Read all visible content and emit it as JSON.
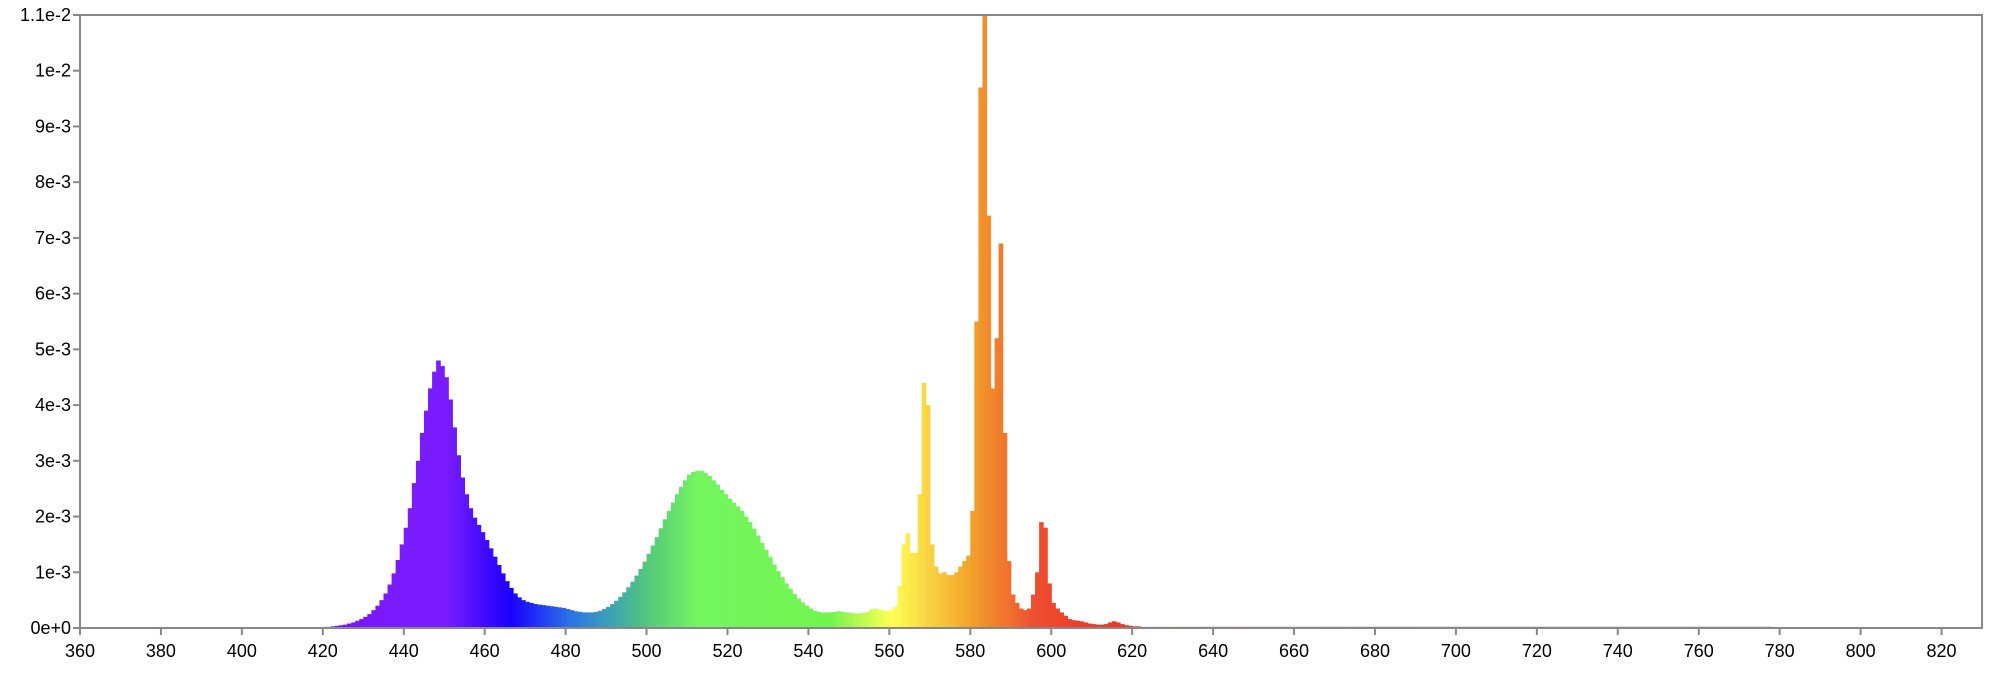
{
  "chart_data": {
    "type": "bar",
    "title": "",
    "xlabel": "",
    "ylabel": "",
    "xlim": [
      360,
      830
    ],
    "ylim": [
      0,
      0.011
    ],
    "grid": false,
    "legend": "none",
    "x_ticks": [
      360,
      380,
      400,
      420,
      440,
      460,
      480,
      500,
      520,
      540,
      560,
      580,
      600,
      620,
      640,
      660,
      680,
      700,
      720,
      740,
      760,
      780,
      800,
      820
    ],
    "x_tick_labels": [
      "360",
      "380",
      "400",
      "420",
      "440",
      "460",
      "480",
      "500",
      "520",
      "540",
      "560",
      "580",
      "600",
      "620",
      "640",
      "660",
      "680",
      "700",
      "720",
      "740",
      "760",
      "780",
      "800",
      "820"
    ],
    "y_ticks": [
      0,
      0.001,
      0.002,
      0.003,
      0.004,
      0.005,
      0.006,
      0.007,
      0.008,
      0.009,
      0.01,
      0.011
    ],
    "y_tick_labels": [
      "0e+0",
      "1e-3",
      "2e-3",
      "3e-3",
      "4e-3",
      "5e-3",
      "6e-3",
      "7e-3",
      "8e-3",
      "9e-3",
      "1e-2",
      "1.1e-2"
    ],
    "series": [
      {
        "x_start": 360,
        "x_step": 1,
        "values": [
          0,
          0,
          0,
          0,
          0,
          0,
          0,
          0,
          0,
          0,
          0,
          0,
          0,
          0,
          0,
          0,
          0,
          0,
          0,
          0,
          0,
          0,
          0,
          0,
          0,
          0,
          0,
          0,
          0,
          0,
          0,
          0,
          0,
          0,
          0,
          0,
          0,
          0,
          0,
          0,
          0,
          0,
          0,
          0,
          0,
          0,
          0,
          0,
          0,
          0,
          1e-05,
          1e-05,
          1e-05,
          1e-05,
          1e-05,
          1e-05,
          1e-05,
          1e-05,
          1e-05,
          1e-05,
          2e-05,
          2e-05,
          3e-05,
          4e-05,
          5e-05,
          6e-05,
          8e-05,
          0.0001,
          0.00013,
          0.00016,
          0.0002,
          0.00025,
          0.00032,
          0.0004,
          0.0005,
          0.00062,
          0.00078,
          0.00098,
          0.00122,
          0.0015,
          0.0018,
          0.00215,
          0.0026,
          0.003,
          0.0035,
          0.0039,
          0.0043,
          0.0046,
          0.0048,
          0.0047,
          0.0045,
          0.0041,
          0.0036,
          0.0031,
          0.0027,
          0.0024,
          0.00215,
          0.00198,
          0.00185,
          0.00172,
          0.00158,
          0.00143,
          0.00128,
          0.00113,
          0.00098,
          0.00084,
          0.00072,
          0.00062,
          0.00055,
          0.0005,
          0.00047,
          0.00045,
          0.00043,
          0.00042,
          0.00041,
          0.0004,
          0.00039,
          0.00038,
          0.00037,
          0.00036,
          0.00034,
          0.00032,
          0.0003,
          0.00029,
          0.00028,
          0.00028,
          0.00028,
          0.00029,
          0.00031,
          0.00034,
          0.00038,
          0.00043,
          0.00049,
          0.00056,
          0.00064,
          0.00073,
          0.00083,
          0.00094,
          0.00106,
          0.00119,
          0.00133,
          0.00148,
          0.00163,
          0.00179,
          0.00195,
          0.0021,
          0.00225,
          0.0024,
          0.00253,
          0.00265,
          0.00275,
          0.0028,
          0.00282,
          0.00282,
          0.00278,
          0.00273,
          0.00265,
          0.00257,
          0.00248,
          0.0024,
          0.00232,
          0.00225,
          0.00218,
          0.0021,
          0.002,
          0.0019,
          0.00178,
          0.00166,
          0.00153,
          0.0014,
          0.00127,
          0.00114,
          0.00102,
          0.00091,
          0.0008,
          0.0007,
          0.00061,
          0.00053,
          0.00046,
          0.0004,
          0.00035,
          0.00031,
          0.00029,
          0.00028,
          0.00028,
          0.00028,
          0.00029,
          0.0003,
          0.00029,
          0.00028,
          0.00027,
          0.00026,
          0.00026,
          0.00027,
          0.00029,
          0.00033,
          0.00035,
          0.00033,
          0.00031,
          0.00031,
          0.00033,
          0.00038,
          0.00075,
          0.0015,
          0.0017,
          0.00135,
          0.00135,
          0.0024,
          0.0044,
          0.004,
          0.0015,
          0.0011,
          0.00098,
          0.001,
          0.00095,
          0.00095,
          0.001,
          0.0011,
          0.0012,
          0.0013,
          0.0021,
          0.0055,
          0.0097,
          0.011,
          0.0074,
          0.0043,
          0.0052,
          0.0069,
          0.0035,
          0.0012,
          0.0006,
          0.00045,
          0.00035,
          0.00032,
          0.00035,
          0.0006,
          0.001,
          0.0019,
          0.0018,
          0.0008,
          0.00045,
          0.00035,
          0.00028,
          0.00022,
          0.00016,
          0.00014,
          0.00013,
          0.00012,
          0.0001,
          8e-05,
          7e-05,
          6e-05,
          6e-05,
          7e-05,
          0.0001,
          0.00012,
          0.0001,
          7e-05,
          5e-05,
          4e-05,
          3e-05,
          3e-05,
          2e-05,
          2e-05,
          2e-05,
          2e-05,
          2e-05,
          2e-05,
          2e-05,
          2e-05,
          2e-05,
          2e-05,
          2e-05,
          2e-05,
          2e-05,
          2e-05,
          2e-05,
          2e-05,
          2e-05,
          2e-05,
          2e-05,
          2e-05,
          2e-05,
          2e-05,
          2e-05,
          2e-05,
          2e-05,
          2e-05,
          2e-05,
          2e-05,
          2e-05,
          2e-05,
          2e-05,
          2e-05,
          2e-05,
          2e-05,
          2e-05,
          2e-05,
          2e-05,
          2e-05,
          2e-05,
          2e-05,
          2e-05,
          2e-05,
          2e-05,
          2e-05,
          2e-05,
          2e-05,
          2e-05,
          2e-05,
          2e-05,
          2e-05,
          2e-05,
          2e-05,
          2e-05,
          2e-05,
          2e-05,
          2e-05,
          2e-05,
          2e-05,
          2e-05,
          2e-05,
          2e-05,
          2e-05,
          2e-05,
          2e-05,
          2e-05,
          2e-05,
          2e-05,
          2e-05,
          2e-05,
          2e-05,
          2e-05,
          2e-05,
          2e-05,
          2e-05,
          2e-05,
          2e-05,
          2e-05,
          2e-05,
          2e-05,
          2e-05,
          2e-05,
          2e-05,
          2e-05,
          2e-05,
          2e-05,
          2e-05,
          2e-05,
          2e-05,
          2e-05,
          2e-05,
          2e-05,
          2e-05,
          2e-05,
          2e-05,
          2e-05,
          2e-05,
          2e-05,
          2e-05,
          2e-05,
          2e-05,
          2e-05,
          2e-05,
          2e-05,
          2e-05,
          2e-05,
          2e-05,
          2e-05,
          2e-05,
          2e-05,
          2e-05,
          2e-05,
          2e-05,
          2e-05,
          2e-05,
          2e-05,
          2e-05,
          2e-05,
          2e-05,
          2e-05,
          2e-05,
          2e-05,
          2e-05,
          2e-05,
          2e-05,
          2e-05,
          2e-05,
          2e-05,
          2e-05,
          2e-05,
          2e-05,
          2e-05,
          2e-05,
          2e-05,
          2e-05,
          2e-05,
          2e-05,
          2e-05,
          2e-05,
          2e-05,
          2e-05,
          2e-05,
          2e-05,
          2e-05,
          2e-05,
          2e-05,
          2e-05,
          2e-05,
          2e-05,
          2e-05,
          2e-05,
          2e-05,
          2e-05,
          2e-05,
          2e-05,
          2e-05,
          2e-05
        ]
      }
    ],
    "color_stops": [
      {
        "nm": 380,
        "color": "#7a00ff"
      },
      {
        "nm": 440,
        "color": "#7a1cff"
      },
      {
        "nm": 450,
        "color": "#7a1cff"
      },
      {
        "nm": 466,
        "color": "#1a00ff"
      },
      {
        "nm": 480,
        "color": "#2a6ee8"
      },
      {
        "nm": 490,
        "color": "#3aa0b8"
      },
      {
        "nm": 500,
        "color": "#55c87a"
      },
      {
        "nm": 512,
        "color": "#73f560"
      },
      {
        "nm": 545,
        "color": "#73f54f"
      },
      {
        "nm": 560,
        "color": "#ffff55"
      },
      {
        "nm": 580,
        "color": "#f2a02a"
      },
      {
        "nm": 595,
        "color": "#ee5030"
      },
      {
        "nm": 608,
        "color": "#ee3a2a"
      },
      {
        "nm": 625,
        "color": "#ea3525"
      },
      {
        "nm": 636,
        "color": "#a82418"
      },
      {
        "nm": 646,
        "color": "#5a0a05"
      },
      {
        "nm": 700,
        "color": "#3c0000"
      },
      {
        "nm": 830,
        "color": "#3c0000"
      }
    ]
  }
}
